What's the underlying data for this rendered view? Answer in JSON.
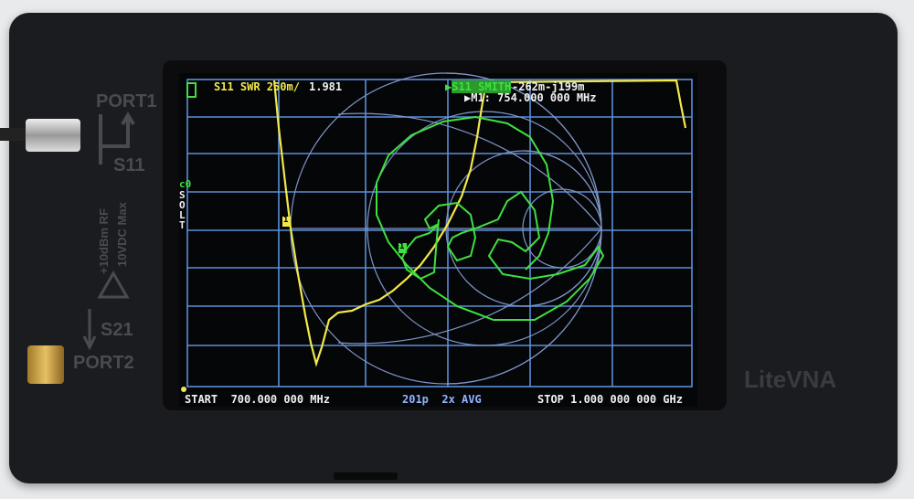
{
  "device": {
    "brand": "LiteVNA",
    "port1_label": "PORT1",
    "port2_label": "PORT2",
    "s11_label": "S11",
    "s21_label": "S21",
    "rating_line1": "+10dBm RF",
    "rating_line2": "10VDC Max"
  },
  "screen": {
    "trace1_label": "S11 SWR 250m/",
    "trace1_value": "1.981",
    "trace2_label": "S11 SMITH",
    "trace2_value": "-262m-j199m",
    "marker_readout": "M1: 754.000 000 MHz",
    "marker_label": "1",
    "cal_status": "c0",
    "cal_letters": [
      "S",
      "O",
      "L",
      "T"
    ],
    "start": "START  700.000 000 MHz",
    "points_avg": "201p  2x AVG",
    "stop": "STOP 1.000 000 000 GHz",
    "colors": {
      "trace1": "#f2e84a",
      "trace2": "#3fe03f",
      "grid": "#5b8fd8",
      "text": "#f2f2f2"
    }
  }
}
